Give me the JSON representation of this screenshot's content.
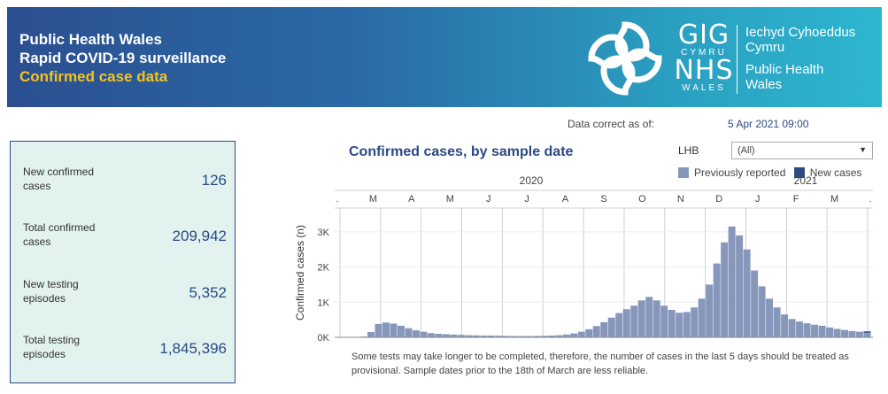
{
  "header": {
    "line1": "Public Health Wales",
    "line2": "Rapid COVID-19 surveillance",
    "line3": "Confirmed case data",
    "logo": {
      "gig": "GIG",
      "cymru": "CYMRU",
      "nhs": "NHS",
      "wales": "WALES",
      "org_welsh_1": "Iechyd Cyhoeddus",
      "org_welsh_2": "Cymru",
      "org_english_1": "Public Health",
      "org_english_2": "Wales"
    }
  },
  "data_correct": {
    "label": "Data correct as of:",
    "value": "5 Apr 2021 09:00"
  },
  "stats": [
    {
      "label": "New confirmed cases",
      "value": "126"
    },
    {
      "label": "Total confirmed cases",
      "value": "209,942"
    },
    {
      "label": "New testing episodes",
      "value": "5,352"
    },
    {
      "label": "Total testing episodes",
      "value": "1,845,396"
    }
  ],
  "filter": {
    "label": "LHB",
    "selected": "(All)"
  },
  "legend": [
    {
      "name": "Previously reported",
      "color": "#8797bc"
    },
    {
      "name": "New cases",
      "color": "#2d4b84"
    }
  ],
  "footnote": "Some tests may take longer to be completed, therefore, the number of cases in the last 5 days should be treated as provisional. Sample dates prior to the 18th of March are less reliable.",
  "colors": {
    "accent": "#2c4a85",
    "highlight": "#f6c21c",
    "panel_bg": "#e2f2ef"
  },
  "chart_data": {
    "type": "bar",
    "title": "Confirmed cases, by sample date",
    "ylabel": "Confirmed cases (n)",
    "xlabel": "",
    "ylim": [
      0,
      3600
    ],
    "y_ticks": [
      {
        "value": 0,
        "label": "0K"
      },
      {
        "value": 1000,
        "label": "1K"
      },
      {
        "value": 2000,
        "label": "2K"
      },
      {
        "value": 3000,
        "label": "3K"
      }
    ],
    "year_labels": [
      {
        "label": "2020",
        "month_index": 5
      },
      {
        "label": "2021",
        "month_index": 11
      }
    ],
    "months": [
      ".",
      "M",
      "A",
      "M",
      "J",
      "J",
      "A",
      "S",
      "O",
      "N",
      "D",
      "J",
      "F",
      "M",
      "."
    ],
    "series_weekly": [
      {
        "name": "Previously reported",
        "values": [
          0,
          20,
          150,
          380,
          420,
          390,
          330,
          260,
          200,
          160,
          120,
          100,
          90,
          80,
          70,
          60,
          55,
          50,
          50,
          45,
          40,
          38,
          35,
          35,
          40,
          45,
          50,
          60,
          80,
          110,
          160,
          230,
          320,
          430,
          560,
          690,
          800,
          900,
          1050,
          1150,
          1050,
          900,
          780,
          700,
          720,
          850,
          1100,
          1500,
          2100,
          2700,
          3150,
          2900,
          2500,
          1900,
          1450,
          1100,
          850,
          650,
          520,
          450,
          400,
          360,
          330,
          280,
          240,
          210,
          180,
          160,
          130
        ]
      },
      {
        "name": "New cases",
        "values": [
          0,
          0,
          0,
          0,
          0,
          0,
          0,
          0,
          0,
          0,
          0,
          0,
          0,
          0,
          0,
          0,
          0,
          0,
          0,
          0,
          0,
          0,
          0,
          0,
          0,
          0,
          0,
          0,
          0,
          0,
          0,
          0,
          0,
          0,
          0,
          0,
          0,
          0,
          0,
          0,
          0,
          0,
          0,
          0,
          0,
          0,
          0,
          0,
          0,
          0,
          0,
          0,
          0,
          0,
          0,
          0,
          0,
          0,
          0,
          0,
          0,
          0,
          0,
          0,
          0,
          0,
          0,
          0,
          40
        ]
      }
    ]
  }
}
